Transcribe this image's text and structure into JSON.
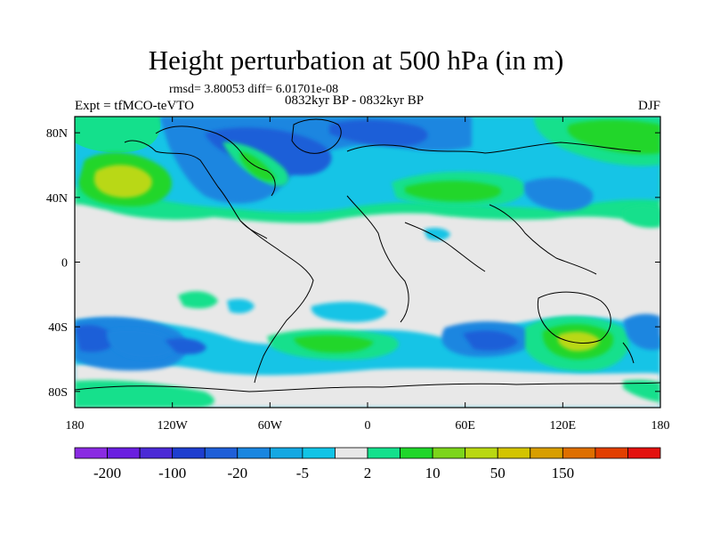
{
  "header": {
    "title": "Height perturbation at 500 hPa (in m)",
    "stats": "rmsd= 3.80053 diff= 6.01701e-08",
    "left_label": "Expt = tfMCO-teVTO",
    "center_label": "0832kyr BP - 0832kyr BP",
    "right_label": "DJF"
  },
  "map": {
    "lon_ticks": [
      {
        "lon": -180,
        "label": "180"
      },
      {
        "lon": -120,
        "label": "120W"
      },
      {
        "lon": -60,
        "label": "60W"
      },
      {
        "lon": 0,
        "label": "0"
      },
      {
        "lon": 60,
        "label": "60E"
      },
      {
        "lon": 120,
        "label": "120E"
      },
      {
        "lon": 180,
        "label": "180"
      }
    ],
    "lat_ticks": [
      {
        "lat": 80,
        "label": "80N"
      },
      {
        "lat": 40,
        "label": "40N"
      },
      {
        "lat": 0,
        "label": "0"
      },
      {
        "lat": -40,
        "label": "40S"
      },
      {
        "lat": -80,
        "label": "80S"
      }
    ]
  },
  "colorbar": {
    "colors": [
      "#8a2be2",
      "#6a1fe0",
      "#4b2ad6",
      "#1e3ecf",
      "#1f5fd8",
      "#1a86e0",
      "#14a8e2",
      "#12c4e6",
      "#e8e8e8",
      "#14e08c",
      "#20d62a",
      "#7cd51b",
      "#b9d812",
      "#d3c400",
      "#d89e00",
      "#de6f00",
      "#e23f00",
      "#e3120f"
    ],
    "labels": [
      {
        "after_box": 1,
        "text": "-200"
      },
      {
        "after_box": 3,
        "text": "-100"
      },
      {
        "after_box": 5,
        "text": "-20"
      },
      {
        "after_box": 7,
        "text": "-5"
      },
      {
        "after_box": 9,
        "text": "2"
      },
      {
        "after_box": 11,
        "text": "10"
      },
      {
        "after_box": 13,
        "text": "50"
      },
      {
        "after_box": 15,
        "text": "150"
      }
    ]
  }
}
